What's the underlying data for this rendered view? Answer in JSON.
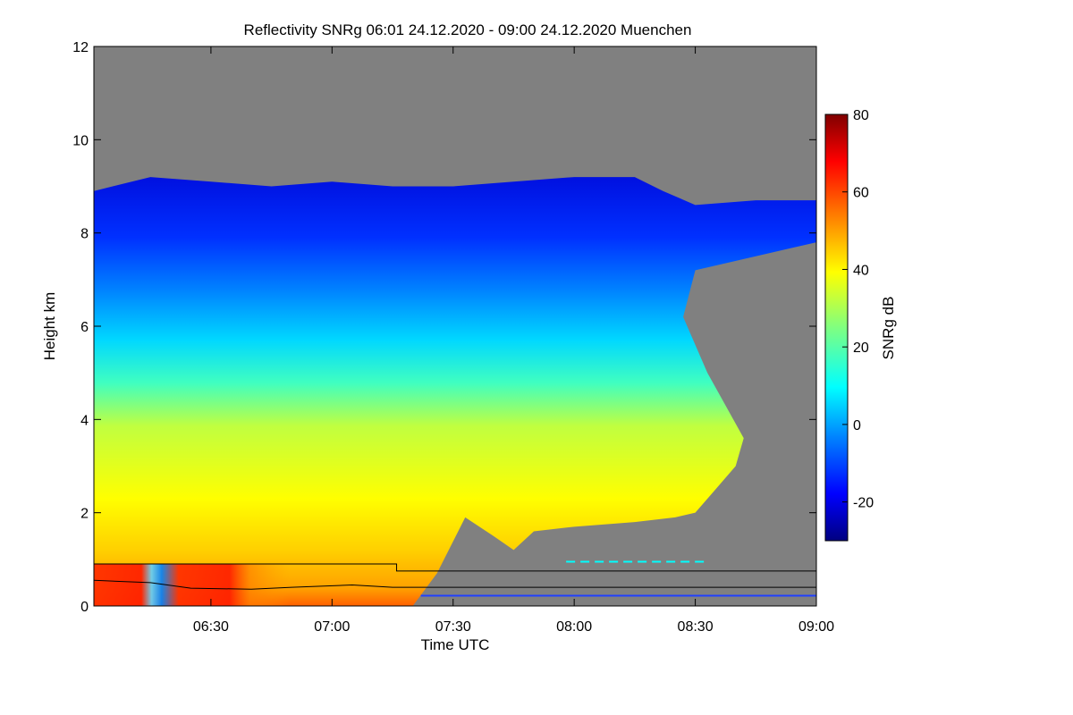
{
  "chart_data": {
    "type": "heatmap",
    "title": "Reflectivity SNRg   06:01 24.12.2020 - 09:00 24.12.2020 Muenchen",
    "xlabel": "Time UTC",
    "ylabel": "Height km",
    "colorbar_label": "SNRg dB",
    "x_range": [
      "06:01",
      "09:00"
    ],
    "y_range": [
      0,
      12
    ],
    "colorbar_range": [
      -30,
      80
    ],
    "x_ticks": [
      "06:30",
      "07:00",
      "07:30",
      "08:00",
      "08:30",
      "09:00"
    ],
    "y_ticks": [
      "0",
      "2",
      "4",
      "6",
      "8",
      "10",
      "12"
    ],
    "colorbar_ticks": [
      "-20",
      "0",
      "20",
      "40",
      "60",
      "80"
    ],
    "background_color": "#808080",
    "echo_top_km": [
      {
        "t": "06:01",
        "h": 8.9
      },
      {
        "t": "06:15",
        "h": 9.2
      },
      {
        "t": "06:30",
        "h": 9.1
      },
      {
        "t": "06:45",
        "h": 9.0
      },
      {
        "t": "07:00",
        "h": 9.1
      },
      {
        "t": "07:15",
        "h": 9.0
      },
      {
        "t": "07:30",
        "h": 9.0
      },
      {
        "t": "07:45",
        "h": 9.1
      },
      {
        "t": "08:00",
        "h": 9.2
      },
      {
        "t": "08:15",
        "h": 9.2
      },
      {
        "t": "08:22",
        "h": 8.9
      },
      {
        "t": "08:30",
        "h": 8.6
      },
      {
        "t": "08:45",
        "h": 8.7
      },
      {
        "t": "09:00",
        "h": 8.7
      }
    ],
    "echo_base_km": [
      {
        "t": "06:01",
        "h": 0.0
      },
      {
        "t": "07:20",
        "h": 0.0
      },
      {
        "t": "07:26",
        "h": 0.7
      },
      {
        "t": "07:33",
        "h": 1.9
      },
      {
        "t": "07:40",
        "h": 1.5
      },
      {
        "t": "07:45",
        "h": 1.2
      },
      {
        "t": "07:50",
        "h": 1.6
      },
      {
        "t": "08:00",
        "h": 1.7
      },
      {
        "t": "08:15",
        "h": 1.8
      },
      {
        "t": "08:25",
        "h": 1.9
      },
      {
        "t": "08:30",
        "h": 2.0
      },
      {
        "t": "08:35",
        "h": 2.5
      },
      {
        "t": "08:40",
        "h": 3.0
      }
    ],
    "line_top_km": [
      {
        "t": "06:01",
        "h": 0.9
      },
      {
        "t": "07:16",
        "h": 0.9
      },
      {
        "t": "07:16",
        "h": 0.75
      },
      {
        "t": "09:00",
        "h": 0.75
      }
    ],
    "line_mid_km": [
      {
        "t": "06:01",
        "h": 0.55
      },
      {
        "t": "06:15",
        "h": 0.5
      },
      {
        "t": "06:25",
        "h": 0.38
      },
      {
        "t": "06:40",
        "h": 0.36
      },
      {
        "t": "06:50",
        "h": 0.4
      },
      {
        "t": "07:05",
        "h": 0.45
      },
      {
        "t": "07:15",
        "h": 0.4
      },
      {
        "t": "07:22",
        "h": 0.4
      },
      {
        "t": "09:00",
        "h": 0.4
      }
    ],
    "line_low_km": [
      {
        "t": "07:22",
        "h": 0.22
      },
      {
        "t": "09:00",
        "h": 0.22
      }
    ],
    "dashed_line": {
      "t_start": "07:58",
      "t_end": "08:33",
      "h": 0.95
    },
    "colormap": [
      "#000080",
      "#0000ff",
      "#0080ff",
      "#00ffff",
      "#80ff80",
      "#ffff00",
      "#ff8000",
      "#ff0000",
      "#800000"
    ]
  }
}
